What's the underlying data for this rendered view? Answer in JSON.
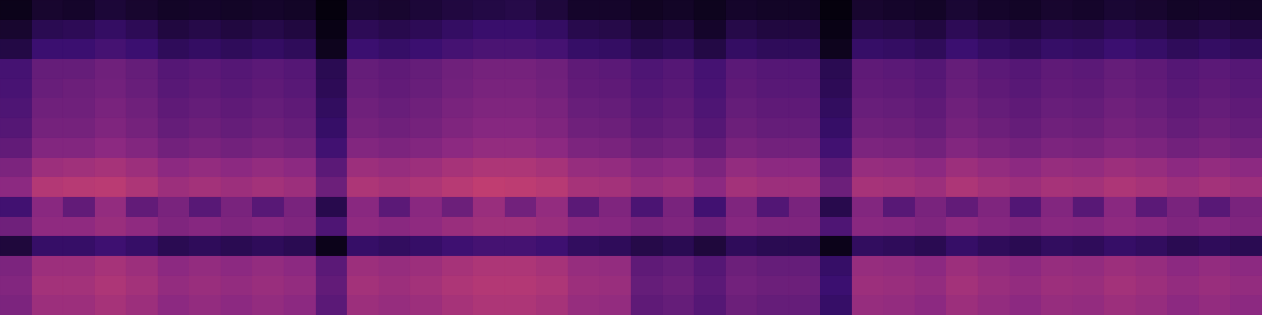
{
  "chart_data": {
    "type": "heatmap",
    "grid": false,
    "tick_labels": false,
    "color_range": [
      0,
      100
    ],
    "cells": [
      [
        5,
        10,
        9,
        12,
        10,
        8,
        9,
        8,
        9,
        8,
        2,
        11,
        10,
        12,
        14,
        15,
        16,
        13,
        9,
        9,
        7,
        8,
        6,
        9,
        8,
        8,
        2,
        10,
        9,
        8,
        11,
        9,
        8,
        10,
        9,
        11,
        10,
        8,
        9,
        8
      ],
      [
        10,
        18,
        19,
        22,
        19,
        14,
        16,
        14,
        16,
        14,
        4,
        19,
        17,
        19,
        22,
        24,
        24,
        22,
        17,
        16,
        12,
        14,
        9,
        16,
        14,
        14,
        4,
        17,
        16,
        14,
        19,
        16,
        14,
        17,
        16,
        19,
        17,
        14,
        16,
        14
      ],
      [
        15,
        25,
        25,
        28,
        25,
        20,
        22,
        20,
        22,
        20,
        6,
        25,
        23,
        25,
        28,
        30,
        30,
        28,
        23,
        22,
        18,
        20,
        15,
        22,
        20,
        20,
        6,
        23,
        22,
        20,
        25,
        22,
        20,
        23,
        22,
        25,
        23,
        20,
        22,
        20
      ],
      [
        28,
        38,
        38,
        41,
        38,
        33,
        35,
        33,
        35,
        33,
        18,
        38,
        36,
        38,
        41,
        43,
        43,
        41,
        36,
        35,
        31,
        33,
        28,
        35,
        33,
        33,
        18,
        36,
        35,
        33,
        38,
        35,
        33,
        36,
        35,
        38,
        36,
        33,
        35,
        33
      ],
      [
        29,
        39,
        40,
        42,
        39,
        34,
        36,
        34,
        36,
        34,
        19,
        39,
        37,
        39,
        42,
        44,
        44,
        42,
        37,
        36,
        32,
        34,
        29,
        36,
        34,
        34,
        19,
        37,
        36,
        34,
        39,
        36,
        34,
        37,
        36,
        39,
        37,
        34,
        36,
        34
      ],
      [
        31,
        41,
        41,
        44,
        41,
        36,
        38,
        36,
        38,
        36,
        21,
        41,
        39,
        41,
        44,
        46,
        46,
        44,
        39,
        38,
        34,
        36,
        31,
        38,
        36,
        36,
        21,
        39,
        38,
        36,
        41,
        38,
        36,
        39,
        38,
        41,
        39,
        36,
        38,
        36
      ],
      [
        33,
        43,
        43,
        46,
        43,
        38,
        40,
        38,
        40,
        38,
        23,
        43,
        41,
        43,
        46,
        48,
        48,
        46,
        41,
        40,
        36,
        38,
        33,
        40,
        38,
        38,
        23,
        41,
        40,
        38,
        43,
        40,
        38,
        41,
        40,
        43,
        41,
        38,
        40,
        38
      ],
      [
        37,
        47,
        47,
        50,
        47,
        42,
        44,
        42,
        44,
        42,
        27,
        47,
        45,
        47,
        50,
        52,
        52,
        50,
        45,
        44,
        40,
        42,
        37,
        44,
        42,
        42,
        27,
        45,
        44,
        42,
        47,
        44,
        42,
        45,
        44,
        47,
        45,
        42,
        44,
        42
      ],
      [
        45,
        55,
        56,
        58,
        55,
        50,
        52,
        50,
        52,
        50,
        35,
        55,
        53,
        55,
        58,
        60,
        60,
        58,
        53,
        52,
        48,
        50,
        45,
        52,
        50,
        50,
        35,
        53,
        52,
        50,
        55,
        52,
        50,
        53,
        52,
        55,
        53,
        50,
        52,
        50
      ],
      [
        50,
        62,
        63,
        64,
        60,
        55,
        57,
        55,
        57,
        55,
        40,
        60,
        58,
        60,
        63,
        66,
        65,
        63,
        58,
        57,
        53,
        55,
        50,
        57,
        55,
        55,
        40,
        58,
        57,
        55,
        60,
        57,
        55,
        58,
        57,
        60,
        58,
        55,
        57,
        55
      ],
      [
        27,
        49,
        37,
        52,
        37,
        44,
        34,
        44,
        34,
        44,
        17,
        49,
        35,
        49,
        40,
        54,
        42,
        52,
        35,
        46,
        30,
        44,
        27,
        46,
        32,
        44,
        17,
        47,
        34,
        44,
        37,
        46,
        32,
        47,
        34,
        49,
        35,
        44,
        34,
        44
      ],
      [
        41,
        51,
        51,
        54,
        51,
        46,
        48,
        46,
        48,
        46,
        31,
        51,
        49,
        51,
        54,
        56,
        56,
        54,
        49,
        48,
        44,
        46,
        41,
        48,
        46,
        46,
        31,
        49,
        48,
        46,
        51,
        48,
        46,
        49,
        48,
        51,
        49,
        46,
        48,
        46
      ],
      [
        13,
        23,
        23,
        26,
        23,
        18,
        20,
        18,
        20,
        18,
        5,
        23,
        21,
        23,
        26,
        28,
        28,
        26,
        21,
        20,
        16,
        18,
        13,
        20,
        18,
        18,
        5,
        21,
        20,
        18,
        23,
        20,
        18,
        21,
        20,
        23,
        21,
        18,
        20,
        18
      ],
      [
        45,
        55,
        55,
        58,
        55,
        50,
        52,
        50,
        52,
        50,
        35,
        55,
        53,
        55,
        58,
        60,
        60,
        58,
        53,
        52,
        36,
        38,
        33,
        40,
        38,
        38,
        23,
        53,
        52,
        50,
        55,
        52,
        50,
        53,
        52,
        55,
        53,
        50,
        52,
        50
      ],
      [
        47,
        57,
        57,
        60,
        57,
        52,
        54,
        52,
        54,
        52,
        37,
        57,
        55,
        57,
        60,
        62,
        62,
        60,
        55,
        54,
        38,
        40,
        35,
        42,
        40,
        40,
        25,
        55,
        54,
        52,
        57,
        54,
        52,
        55,
        54,
        57,
        55,
        52,
        54,
        52
      ],
      [
        45,
        55,
        55,
        58,
        55,
        50,
        52,
        50,
        52,
        50,
        35,
        55,
        53,
        55,
        58,
        60,
        60,
        58,
        53,
        52,
        36,
        38,
        33,
        40,
        38,
        38,
        23,
        53,
        52,
        50,
        55,
        52,
        50,
        53,
        52,
        55,
        53,
        50,
        52,
        50
      ]
    ]
  }
}
